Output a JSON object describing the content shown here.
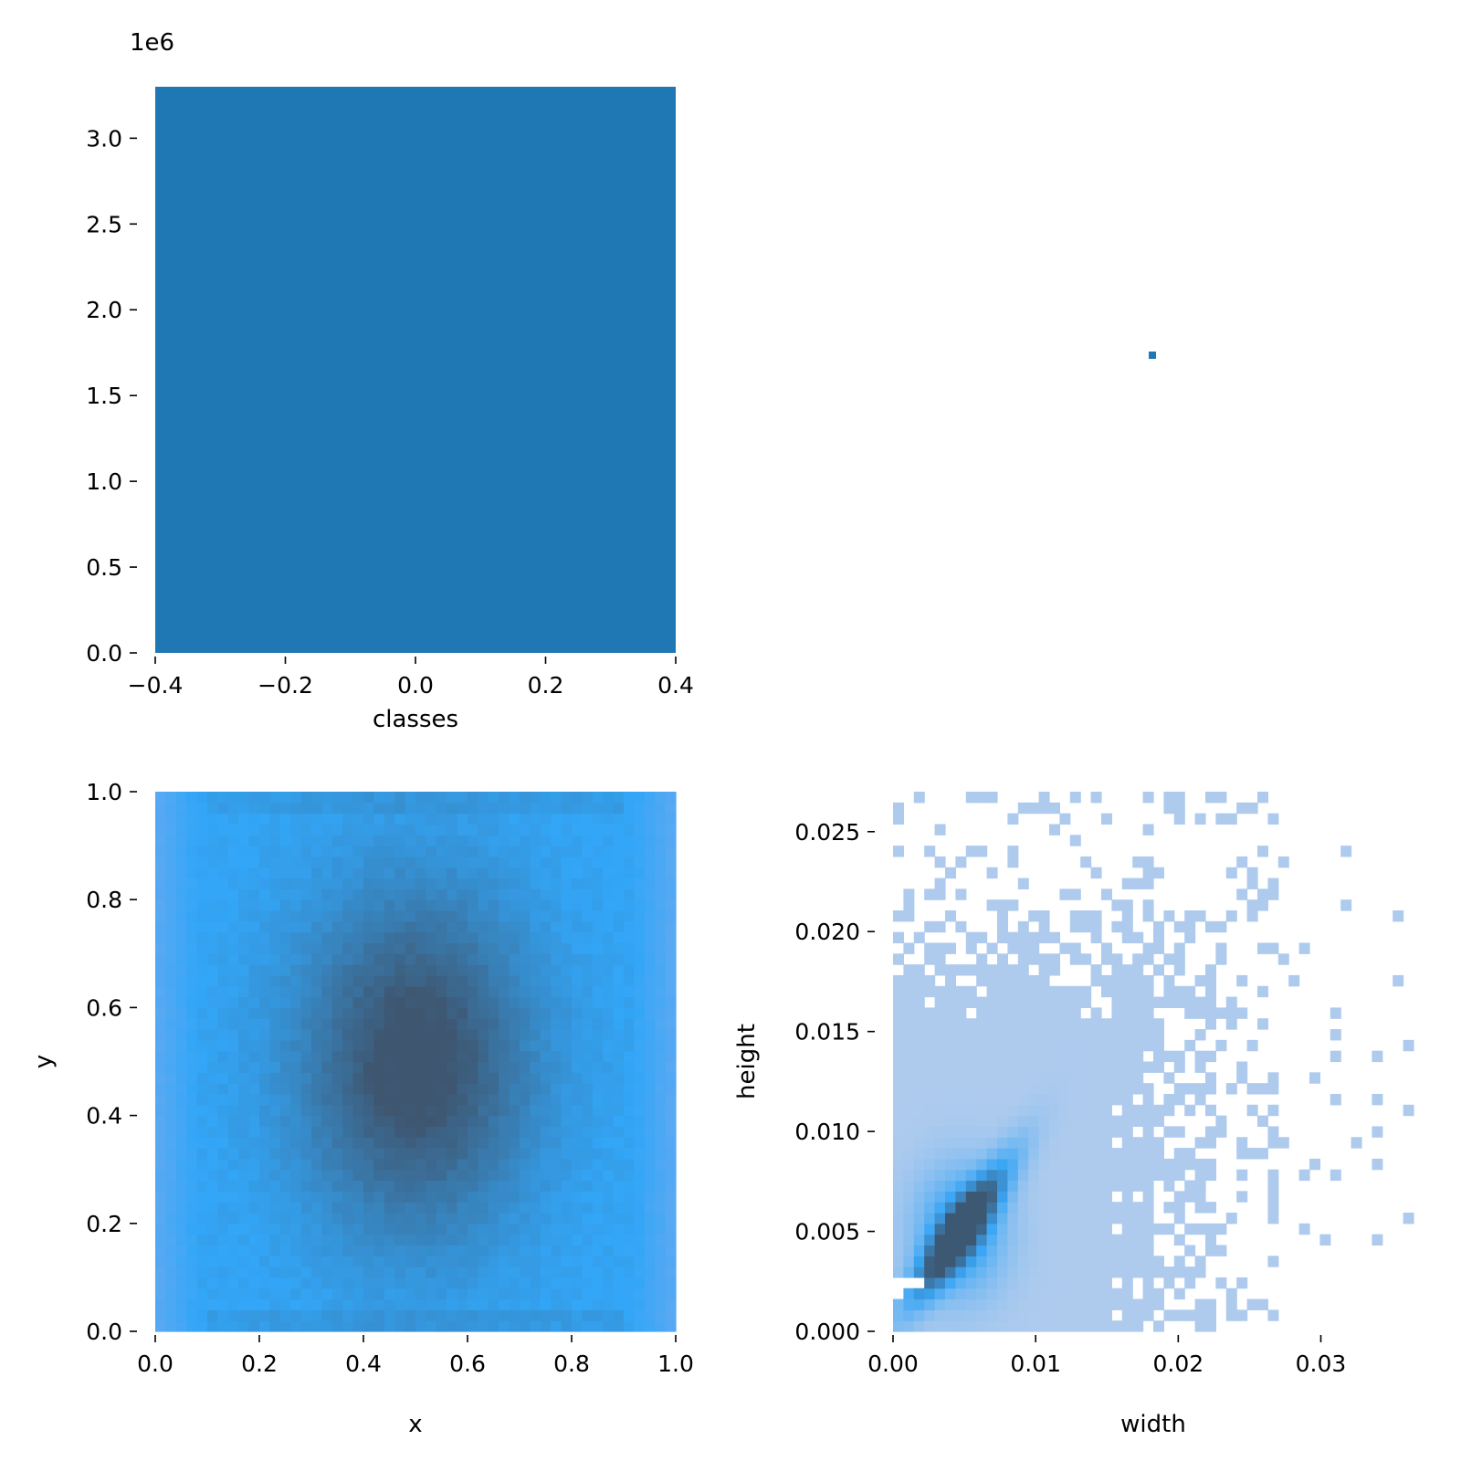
{
  "chart_data": [
    {
      "type": "bar",
      "xlabel": "classes",
      "ylabel": "",
      "offset_label": "1e6",
      "categories": [
        0
      ],
      "values": [
        3300000
      ],
      "bar_width": 0.8,
      "xlim": [
        -0.4,
        0.4
      ],
      "ylim": [
        0,
        3300000
      ],
      "xticks": [
        -0.4,
        -0.2,
        0.0,
        0.2,
        0.4
      ],
      "xtick_labels": [
        "−0.4",
        "−0.2",
        "0.0",
        "0.2",
        "0.4"
      ],
      "yticks": [
        0,
        500000,
        1000000,
        1500000,
        2000000,
        2500000,
        3000000
      ],
      "ytick_labels": [
        "0.0",
        "0.5",
        "1.0",
        "1.5",
        "2.0",
        "2.5",
        "3.0"
      ],
      "color": "#1f77b4",
      "grid": false
    },
    {
      "type": "scatter",
      "note_points": [
        {
          "x": 0.0182,
          "y": 0.0183
        }
      ],
      "color": "#1f77b4",
      "axes_visible": false
    },
    {
      "type": "heatmap",
      "xlabel": "x",
      "ylabel": "y",
      "xlim": [
        0,
        1
      ],
      "ylim": [
        0,
        1
      ],
      "xticks": [
        0.0,
        0.2,
        0.4,
        0.6,
        0.8,
        1.0
      ],
      "xtick_labels": [
        "0.0",
        "0.2",
        "0.4",
        "0.6",
        "0.8",
        "1.0"
      ],
      "yticks": [
        0.0,
        0.2,
        0.4,
        0.6,
        0.8,
        1.0
      ],
      "ytick_labels": [
        "0.0",
        "0.2",
        "0.4",
        "0.6",
        "0.8",
        "1.0"
      ],
      "bins": 50,
      "peak": {
        "x": 0.5,
        "y": 0.5,
        "sx": 0.17,
        "sy": 0.24
      },
      "colors": {
        "low": "#6aaaf0",
        "mid": "#33a6f7",
        "high": "#3e5670"
      },
      "grid": false
    },
    {
      "type": "heatmap",
      "xlabel": "width",
      "ylabel": "height",
      "xlim": [
        0,
        0.0365
      ],
      "ylim": [
        0,
        0.027
      ],
      "xticks": [
        0.0,
        0.01,
        0.02,
        0.03
      ],
      "xtick_labels": [
        "0.00",
        "0.01",
        "0.02",
        "0.03"
      ],
      "yticks": [
        0.0,
        0.005,
        0.01,
        0.015,
        0.02,
        0.025
      ],
      "ytick_labels": [
        "0.000",
        "0.005",
        "0.010",
        "0.015",
        "0.020",
        "0.025"
      ],
      "bins": 50,
      "peak": {
        "x": 0.0047,
        "y": 0.005
      },
      "colors": {
        "low": "#aecbee",
        "mid": "#3aa6f5",
        "high": "#3d5873"
      },
      "grid": false
    }
  ]
}
